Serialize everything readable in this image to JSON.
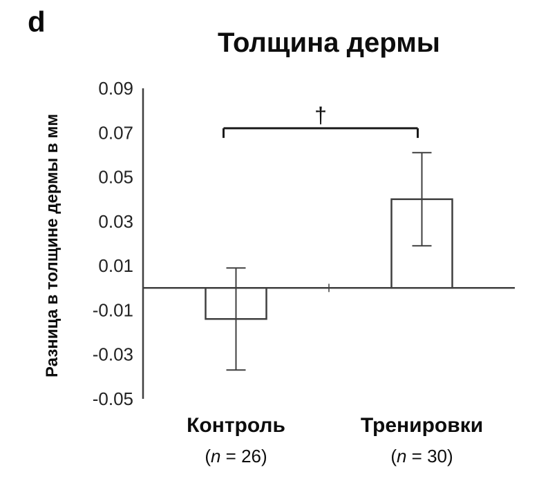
{
  "panel_label": "d",
  "chart_data": {
    "type": "bar",
    "title": "Толщина дермы",
    "ylabel": "Разница в толщине дермы в мм",
    "categories": [
      "Контроль",
      "Тренировки"
    ],
    "category_sublabels": [
      "(n = 26)",
      "(n = 30)"
    ],
    "values": [
      -0.014,
      0.04
    ],
    "error_bars": {
      "low": [
        -0.037,
        0.019
      ],
      "high": [
        0.009,
        0.061
      ]
    },
    "ylim": [
      -0.05,
      0.09
    ],
    "ytick_values": [
      0.09,
      0.07,
      0.05,
      0.03,
      0.01,
      -0.01,
      -0.03,
      -0.05
    ],
    "ytick_labels": [
      "0.09",
      "0.07",
      "0.05",
      "0.03",
      "0.01",
      "-0.01",
      "-0.03",
      "-0.05"
    ],
    "significance": {
      "symbol": "†",
      "y": 0.072
    },
    "bar_fill": "#ffffff",
    "line_color": "#3f3f3f",
    "grid": false,
    "legend": false
  }
}
